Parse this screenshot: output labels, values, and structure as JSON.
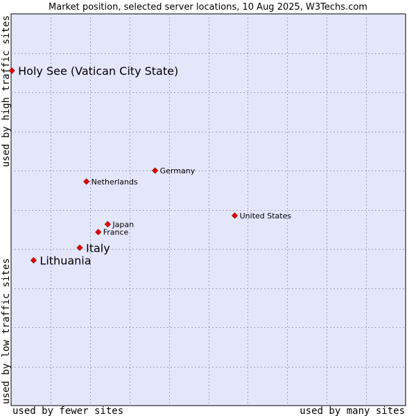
{
  "chart_data": {
    "type": "scatter",
    "title": "Market position, selected server locations, 10 Aug 2025, W3Techs.com",
    "xlabel_left": "used by fewer sites",
    "xlabel_right": "used by many sites",
    "ylabel_bottom": "used by low traffic sites",
    "ylabel_top": "used by high traffic sites",
    "xlim": [
      0,
      100
    ],
    "ylim": [
      0,
      100
    ],
    "grid": true,
    "colors": {
      "plot_bg": "#e4e6fa",
      "marker": "#ee0000",
      "marker_outline": "#880000",
      "border": "#000000"
    },
    "points": [
      {
        "name": "Holy See (Vatican City State)",
        "x": 0.2,
        "y": 85.5,
        "emphasis": true
      },
      {
        "name": "Germany",
        "x": 36.5,
        "y": 60.0,
        "emphasis": false
      },
      {
        "name": "Netherlands",
        "x": 19.1,
        "y": 57.2,
        "emphasis": false
      },
      {
        "name": "United States",
        "x": 56.7,
        "y": 48.5,
        "emphasis": false
      },
      {
        "name": "Japan",
        "x": 24.5,
        "y": 46.3,
        "emphasis": false
      },
      {
        "name": "France",
        "x": 22.1,
        "y": 44.3,
        "emphasis": false
      },
      {
        "name": "Italy",
        "x": 17.4,
        "y": 40.3,
        "emphasis": true
      },
      {
        "name": "Lithuania",
        "x": 5.7,
        "y": 37.1,
        "emphasis": true
      }
    ]
  }
}
